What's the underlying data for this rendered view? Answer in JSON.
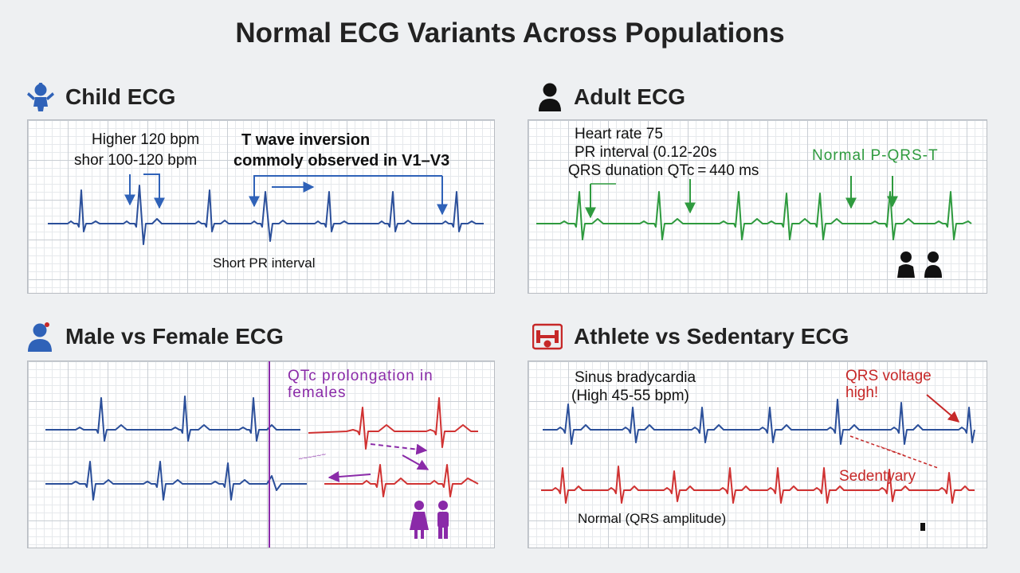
{
  "title": "Normal ECG Variants Across Populations",
  "colors": {
    "blue_trace": "#2b4f9a",
    "green_trace": "#2e9a3e",
    "red_trace": "#d03232",
    "purple": "#8a2aa8",
    "blue_arrow": "#2f62b8",
    "green_arrow": "#2e9a3e",
    "red_arrow": "#c62828"
  },
  "panels": {
    "child": {
      "heading": "Child ECG",
      "icon": "child-icon",
      "rate_line1": "Higher 120 bpm",
      "rate_line2": "shor 100-120 bpm",
      "twave_line1": "T wave inversion",
      "twave_line2": "commoly observed in V1–V3",
      "pr_label": "Short PR interval"
    },
    "adult": {
      "heading": "Adult ECG",
      "icon": "adult-icon",
      "line1": "Heart rate 75",
      "line2": "PR interval (0.12-20s",
      "line3": "QRS dunation QTc = 440 ms",
      "normal_label": "Normal P-QRS-T",
      "people_icon": "couple-icon"
    },
    "sex": {
      "heading": "Male vs Female ECG",
      "icon": "person-icon",
      "qtc_line1": "QTc prolongation in",
      "qtc_line2": "females",
      "scribble_text": "~~~~~~",
      "people_icon": "female-male-icon"
    },
    "athlete": {
      "heading": "Athlete vs Sedentary ECG",
      "icon": "dumbbell-icon",
      "brady_line1": "Sinus bradycardia",
      "brady_line2": "(High 45-55 bpm)",
      "qrs_line1": "QRS voltage",
      "qrs_line2": "high!",
      "scribble_text": "~~~~~~",
      "sedentary_label": "Sedentyary",
      "normal_label": "Normal (QRS amplitude)"
    }
  }
}
